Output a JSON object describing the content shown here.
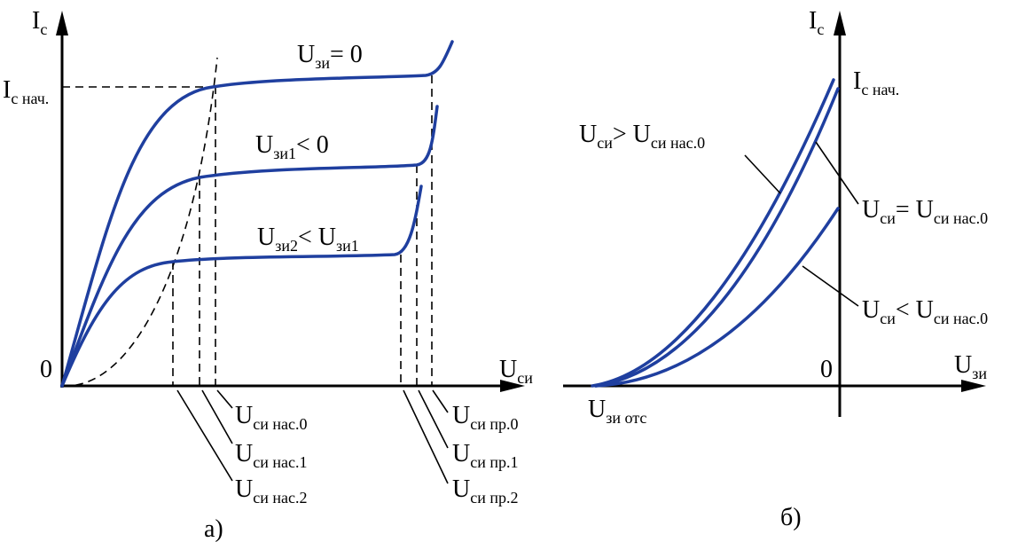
{
  "left": {
    "labels": [
      {
        "parts": [
          {
            "text": "I"
          },
          {
            "sub": "с"
          }
        ]
      },
      {
        "parts": [
          {
            "text": "I"
          },
          {
            "sub": "с нач."
          }
        ]
      },
      {
        "parts": [
          {
            "text": "U"
          },
          {
            "sub": "зи"
          },
          {
            "text": "= 0"
          }
        ]
      },
      {
        "parts": [
          {
            "text": "U"
          },
          {
            "sub": "зи1"
          },
          {
            "text": "< 0"
          }
        ]
      },
      {
        "parts": [
          {
            "text": "U"
          },
          {
            "sub": "зи2"
          },
          {
            "text": "< U"
          },
          {
            "sub": "зи1"
          }
        ]
      },
      {
        "parts": [
          {
            "text": "0"
          }
        ]
      },
      {
        "parts": [
          {
            "text": "U"
          },
          {
            "sub": "си"
          }
        ]
      },
      {
        "parts": [
          {
            "text": "U"
          },
          {
            "sub": "си нас.0"
          }
        ]
      },
      {
        "parts": [
          {
            "text": "U"
          },
          {
            "sub": "си нас.1"
          }
        ]
      },
      {
        "parts": [
          {
            "text": "U"
          },
          {
            "sub": "си нас.2"
          }
        ]
      },
      {
        "parts": [
          {
            "text": "U"
          },
          {
            "sub": "си пр.0"
          }
        ]
      },
      {
        "parts": [
          {
            "text": "U"
          },
          {
            "sub": "си пр.1"
          }
        ]
      },
      {
        "parts": [
          {
            "text": "U"
          },
          {
            "sub": "си пр.2"
          }
        ]
      },
      {
        "parts": [
          {
            "text": "а)"
          }
        ]
      }
    ]
  },
  "right": {
    "labels": [
      {
        "parts": [
          {
            "text": "I"
          },
          {
            "sub": "с"
          }
        ]
      },
      {
        "parts": [
          {
            "text": "I"
          },
          {
            "sub": "с нач."
          }
        ]
      },
      {
        "parts": [
          {
            "text": "U"
          },
          {
            "sub": "си"
          },
          {
            "text": "> U"
          },
          {
            "sub": "си нас.0"
          }
        ]
      },
      {
        "parts": [
          {
            "text": "U"
          },
          {
            "sub": "си"
          },
          {
            "text": "= U"
          },
          {
            "sub": "си нас.0"
          }
        ]
      },
      {
        "parts": [
          {
            "text": "U"
          },
          {
            "sub": "си"
          },
          {
            "text": "< U"
          },
          {
            "sub": "си нас.0"
          }
        ]
      },
      {
        "parts": [
          {
            "text": "0"
          }
        ]
      },
      {
        "parts": [
          {
            "text": "U"
          },
          {
            "sub": "зи"
          }
        ]
      },
      {
        "parts": [
          {
            "text": "U"
          },
          {
            "sub": "зи отс"
          }
        ]
      },
      {
        "parts": [
          {
            "text": "б)"
          }
        ]
      }
    ]
  }
}
